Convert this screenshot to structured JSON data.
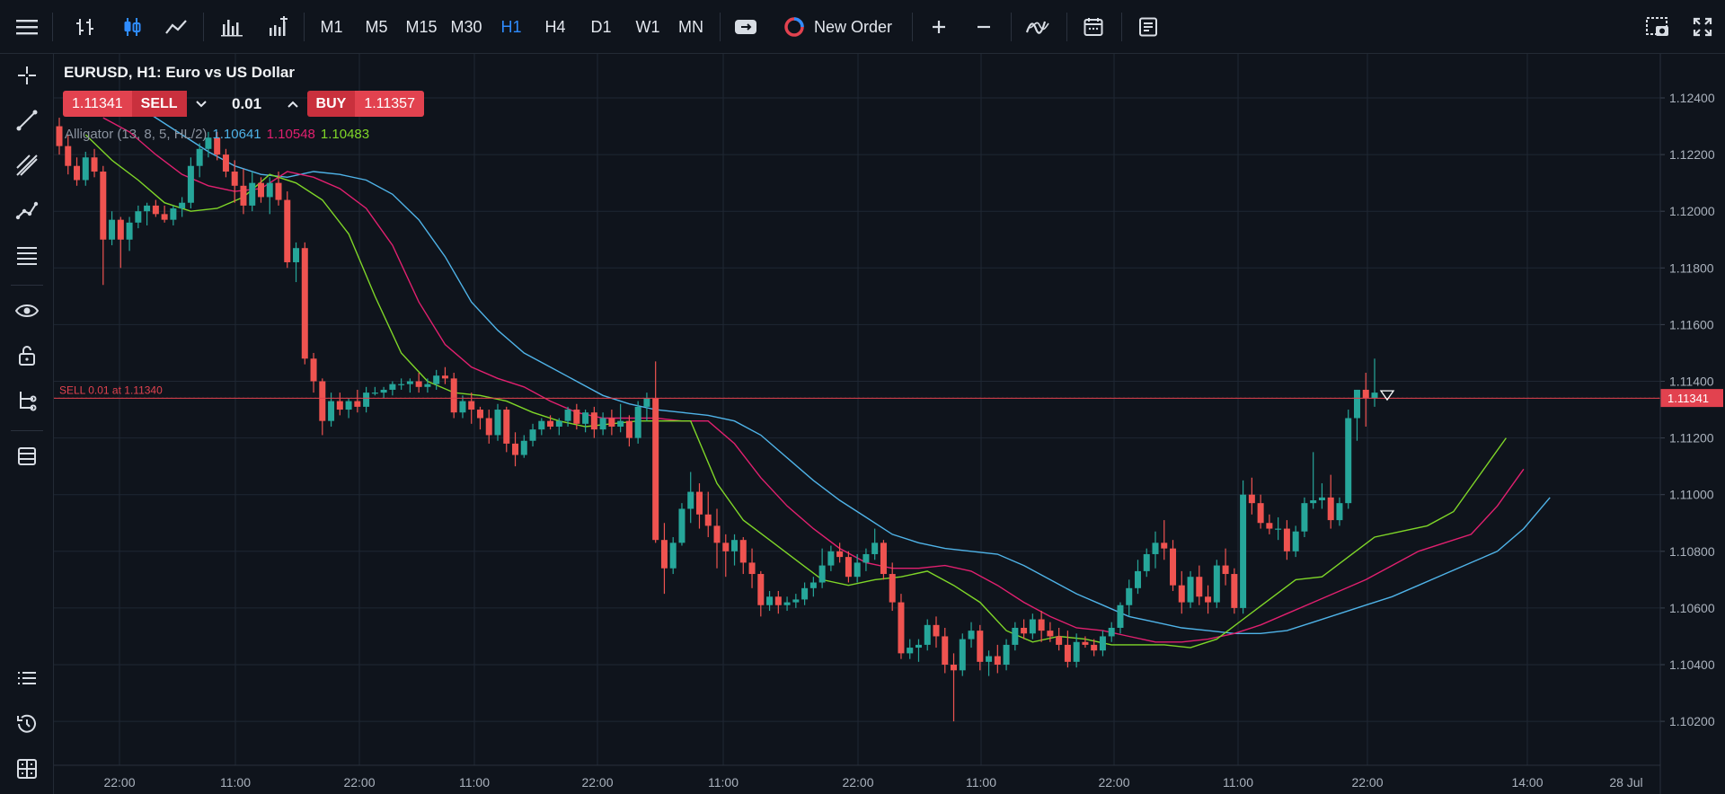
{
  "toolbar": {
    "timeframes": [
      "M1",
      "M5",
      "M15",
      "M30",
      "H1",
      "H4",
      "D1",
      "W1",
      "MN"
    ],
    "active_timeframe": "H1",
    "new_order_label": "New Order"
  },
  "chart_header": {
    "title": "EURUSD, H1: Euro vs US Dollar",
    "sell_price": "1.11341",
    "sell_label": "SELL",
    "quantity": "0.01",
    "buy_label": "BUY",
    "buy_price": "1.11357"
  },
  "indicator": {
    "name": "Alligator (13, 8, 5, HL/2)",
    "jaw": "1.10641",
    "teeth": "1.10548",
    "lips": "1.10483",
    "colors": {
      "jaw": "#4fb3e8",
      "teeth": "#e0206f",
      "lips": "#7fd628"
    }
  },
  "order_line": {
    "label": "SELL 0.01 at 1.11340",
    "price": 1.1134
  },
  "current_price": {
    "label": "1.11341",
    "value": 1.11341
  },
  "colors": {
    "bull": "#26a69a",
    "bear": "#ef5350",
    "grid": "#1f2733",
    "background": "#0f141c"
  },
  "chart_data": {
    "type": "candlestick",
    "symbol": "EURUSD",
    "timeframe": "H1",
    "ylim": [
      1.101,
      1.125
    ],
    "y_ticks": [
      "1.12400",
      "1.12200",
      "1.12000",
      "1.11800",
      "1.11600",
      "1.11400",
      "1.11200",
      "1.11000",
      "1.10800",
      "1.10600",
      "1.10400",
      "1.10200"
    ],
    "x_ticks": [
      "22:00",
      "11:00",
      "22:00",
      "11:00",
      "22:00",
      "11:00",
      "22:00",
      "11:00",
      "22:00",
      "11:00",
      "22:00",
      "14:00",
      "28 Jul"
    ],
    "candles": [
      [
        1.123,
        1.1233,
        1.122,
        1.1223
      ],
      [
        1.1223,
        1.1227,
        1.1213,
        1.1216
      ],
      [
        1.1216,
        1.1219,
        1.1209,
        1.1211
      ],
      [
        1.1211,
        1.1221,
        1.1209,
        1.1219
      ],
      [
        1.1219,
        1.1222,
        1.1212,
        1.1214
      ],
      [
        1.1214,
        1.1216,
        1.1174,
        1.119
      ],
      [
        1.119,
        1.12,
        1.1188,
        1.1197
      ],
      [
        1.1197,
        1.1198,
        1.118,
        1.119
      ],
      [
        1.119,
        1.1198,
        1.1186,
        1.1196
      ],
      [
        1.1196,
        1.1202,
        1.1194,
        1.12
      ],
      [
        1.12,
        1.1203,
        1.1195,
        1.1202
      ],
      [
        1.1202,
        1.1204,
        1.1198,
        1.1199
      ],
      [
        1.1199,
        1.1202,
        1.1196,
        1.1197
      ],
      [
        1.1197,
        1.1202,
        1.1195,
        1.1201
      ],
      [
        1.1201,
        1.1205,
        1.1198,
        1.1203
      ],
      [
        1.1203,
        1.1219,
        1.1201,
        1.1216
      ],
      [
        1.1216,
        1.1224,
        1.1212,
        1.1222
      ],
      [
        1.1222,
        1.1228,
        1.1219,
        1.1226
      ],
      [
        1.1226,
        1.1228,
        1.1218,
        1.122
      ],
      [
        1.122,
        1.1222,
        1.1212,
        1.1214
      ],
      [
        1.1214,
        1.1218,
        1.1203,
        1.1209
      ],
      [
        1.1209,
        1.1215,
        1.1199,
        1.1202
      ],
      [
        1.1202,
        1.1214,
        1.12,
        1.121
      ],
      [
        1.121,
        1.1212,
        1.1203,
        1.1205
      ],
      [
        1.1205,
        1.1212,
        1.1199,
        1.121
      ],
      [
        1.121,
        1.1214,
        1.1202,
        1.1204
      ],
      [
        1.1204,
        1.1207,
        1.118,
        1.1182
      ],
      [
        1.1182,
        1.1189,
        1.1175,
        1.1187
      ],
      [
        1.1187,
        1.1189,
        1.1146,
        1.1148
      ],
      [
        1.1148,
        1.115,
        1.1136,
        1.114
      ],
      [
        1.114,
        1.1141,
        1.1121,
        1.1126
      ],
      [
        1.1126,
        1.1136,
        1.1124,
        1.1133
      ],
      [
        1.1133,
        1.1136,
        1.1128,
        1.113
      ],
      [
        1.113,
        1.1134,
        1.1127,
        1.1133
      ],
      [
        1.1133,
        1.1137,
        1.1129,
        1.1131
      ],
      [
        1.1131,
        1.1138,
        1.1129,
        1.1136
      ],
      [
        1.1136,
        1.1138,
        1.1135,
        1.1136
      ],
      [
        1.1136,
        1.1138,
        1.1134,
        1.1137
      ],
      [
        1.1137,
        1.114,
        1.1135,
        1.1139
      ],
      [
        1.1139,
        1.1141,
        1.1137,
        1.1139
      ],
      [
        1.1139,
        1.1141,
        1.1136,
        1.114
      ],
      [
        1.114,
        1.1143,
        1.1136,
        1.1138
      ],
      [
        1.1138,
        1.1141,
        1.1136,
        1.1139
      ],
      [
        1.1139,
        1.1144,
        1.1137,
        1.1142
      ],
      [
        1.1142,
        1.1145,
        1.1139,
        1.1141
      ],
      [
        1.1141,
        1.1143,
        1.1127,
        1.1129
      ],
      [
        1.1129,
        1.1135,
        1.1127,
        1.1133
      ],
      [
        1.1133,
        1.1136,
        1.1125,
        1.113
      ],
      [
        1.113,
        1.1131,
        1.1123,
        1.1127
      ],
      [
        1.1127,
        1.113,
        1.1118,
        1.1121
      ],
      [
        1.1121,
        1.1132,
        1.1119,
        1.113
      ],
      [
        1.113,
        1.1131,
        1.1115,
        1.1118
      ],
      [
        1.1118,
        1.1122,
        1.111,
        1.1114
      ],
      [
        1.1114,
        1.1121,
        1.1113,
        1.1119
      ],
      [
        1.1119,
        1.1125,
        1.1117,
        1.1123
      ],
      [
        1.1123,
        1.1127,
        1.1121,
        1.1126
      ],
      [
        1.1126,
        1.1128,
        1.1123,
        1.1124
      ],
      [
        1.1124,
        1.1127,
        1.1121,
        1.1126
      ],
      [
        1.1126,
        1.1131,
        1.1124,
        1.113
      ],
      [
        1.113,
        1.1132,
        1.1123,
        1.1125
      ],
      [
        1.1125,
        1.113,
        1.1122,
        1.1129
      ],
      [
        1.1129,
        1.1131,
        1.112,
        1.1123
      ],
      [
        1.1123,
        1.1129,
        1.1121,
        1.1127
      ],
      [
        1.1127,
        1.113,
        1.1121,
        1.1124
      ],
      [
        1.1124,
        1.1132,
        1.1122,
        1.1126
      ],
      [
        1.1126,
        1.1128,
        1.1117,
        1.112
      ],
      [
        1.112,
        1.1133,
        1.1118,
        1.1131
      ],
      [
        1.1131,
        1.1136,
        1.1126,
        1.1134
      ],
      [
        1.1134,
        1.1147,
        1.1083,
        1.1084
      ],
      [
        1.1084,
        1.109,
        1.1065,
        1.1074
      ],
      [
        1.1074,
        1.1085,
        1.1072,
        1.1083
      ],
      [
        1.1083,
        1.1097,
        1.1082,
        1.1095
      ],
      [
        1.1095,
        1.1108,
        1.109,
        1.1101
      ],
      [
        1.1101,
        1.1104,
        1.1088,
        1.1093
      ],
      [
        1.1093,
        1.1101,
        1.1085,
        1.1089
      ],
      [
        1.1089,
        1.1095,
        1.1074,
        1.1083
      ],
      [
        1.1083,
        1.1086,
        1.1071,
        1.108
      ],
      [
        1.108,
        1.1086,
        1.1075,
        1.1084
      ],
      [
        1.1084,
        1.1085,
        1.1072,
        1.1076
      ],
      [
        1.1076,
        1.1081,
        1.1067,
        1.1072
      ],
      [
        1.1072,
        1.1073,
        1.1057,
        1.1061
      ],
      [
        1.1061,
        1.1066,
        1.1059,
        1.1064
      ],
      [
        1.1064,
        1.1066,
        1.1058,
        1.1061
      ],
      [
        1.1061,
        1.1064,
        1.1059,
        1.1062
      ],
      [
        1.1062,
        1.1065,
        1.106,
        1.1063
      ],
      [
        1.1063,
        1.1069,
        1.1061,
        1.1067
      ],
      [
        1.1067,
        1.1071,
        1.1064,
        1.1069
      ],
      [
        1.1069,
        1.1081,
        1.1067,
        1.1075
      ],
      [
        1.1075,
        1.1082,
        1.1073,
        1.108
      ],
      [
        1.108,
        1.1083,
        1.1076,
        1.1078
      ],
      [
        1.1078,
        1.108,
        1.1069,
        1.1071
      ],
      [
        1.1071,
        1.1079,
        1.1069,
        1.1076
      ],
      [
        1.1076,
        1.1081,
        1.1073,
        1.1079
      ],
      [
        1.1079,
        1.1088,
        1.1077,
        1.1083
      ],
      [
        1.1083,
        1.1084,
        1.107,
        1.1072
      ],
      [
        1.1072,
        1.1076,
        1.1059,
        1.1062
      ],
      [
        1.1062,
        1.1065,
        1.1042,
        1.1044
      ],
      [
        1.1044,
        1.1049,
        1.1042,
        1.1046
      ],
      [
        1.1046,
        1.1049,
        1.1041,
        1.1047
      ],
      [
        1.1047,
        1.1056,
        1.1045,
        1.1054
      ],
      [
        1.1054,
        1.1057,
        1.1046,
        1.105
      ],
      [
        1.105,
        1.1053,
        1.1037,
        1.104
      ],
      [
        1.104,
        1.1044,
        1.102,
        1.1038
      ],
      [
        1.1038,
        1.1051,
        1.1036,
        1.1049
      ],
      [
        1.1049,
        1.1055,
        1.1046,
        1.1052
      ],
      [
        1.1052,
        1.1054,
        1.1038,
        1.1041
      ],
      [
        1.1041,
        1.1045,
        1.1036,
        1.1043
      ],
      [
        1.1043,
        1.1047,
        1.1037,
        1.104
      ],
      [
        1.104,
        1.1049,
        1.1038,
        1.1047
      ],
      [
        1.1047,
        1.1055,
        1.1045,
        1.1053
      ],
      [
        1.1053,
        1.1056,
        1.1049,
        1.1051
      ],
      [
        1.1051,
        1.1058,
        1.1049,
        1.1056
      ],
      [
        1.1056,
        1.1059,
        1.1048,
        1.1052
      ],
      [
        1.1052,
        1.1055,
        1.1048,
        1.105
      ],
      [
        1.105,
        1.1053,
        1.1045,
        1.1047
      ],
      [
        1.1047,
        1.1052,
        1.1039,
        1.1041
      ],
      [
        1.1041,
        1.1051,
        1.1039,
        1.1048
      ],
      [
        1.1048,
        1.105,
        1.1046,
        1.1047
      ],
      [
        1.1047,
        1.1049,
        1.1043,
        1.1045
      ],
      [
        1.1045,
        1.1052,
        1.1043,
        1.105
      ],
      [
        1.105,
        1.1055,
        1.1048,
        1.1053
      ],
      [
        1.1053,
        1.1062,
        1.1051,
        1.1061
      ],
      [
        1.1061,
        1.107,
        1.1057,
        1.1067
      ],
      [
        1.1067,
        1.1077,
        1.1065,
        1.1073
      ],
      [
        1.1073,
        1.1081,
        1.1071,
        1.1079
      ],
      [
        1.1079,
        1.1087,
        1.1074,
        1.1083
      ],
      [
        1.1083,
        1.1091,
        1.1077,
        1.1081
      ],
      [
        1.1081,
        1.1084,
        1.1066,
        1.1068
      ],
      [
        1.1068,
        1.1073,
        1.1058,
        1.1062
      ],
      [
        1.1062,
        1.1073,
        1.106,
        1.1071
      ],
      [
        1.1071,
        1.1075,
        1.1061,
        1.1064
      ],
      [
        1.1064,
        1.1068,
        1.1058,
        1.1062
      ],
      [
        1.1062,
        1.1077,
        1.106,
        1.1075
      ],
      [
        1.1075,
        1.1081,
        1.1068,
        1.1072
      ],
      [
        1.1072,
        1.1074,
        1.1058,
        1.106
      ],
      [
        1.106,
        1.1105,
        1.1058,
        1.11
      ],
      [
        1.11,
        1.1106,
        1.1093,
        1.1097
      ],
      [
        1.1097,
        1.11,
        1.1088,
        1.109
      ],
      [
        1.109,
        1.1093,
        1.1086,
        1.1088
      ],
      [
        1.1088,
        1.1092,
        1.1084,
        1.1088
      ],
      [
        1.1088,
        1.1091,
        1.1077,
        1.108
      ],
      [
        1.108,
        1.1089,
        1.1078,
        1.1087
      ],
      [
        1.1087,
        1.1099,
        1.1085,
        1.1097
      ],
      [
        1.1097,
        1.1115,
        1.1095,
        1.1098
      ],
      [
        1.1098,
        1.1104,
        1.1095,
        1.1099
      ],
      [
        1.1099,
        1.1107,
        1.1088,
        1.1091
      ],
      [
        1.1091,
        1.1099,
        1.1089,
        1.1097
      ],
      [
        1.1097,
        1.113,
        1.1095,
        1.1127
      ],
      [
        1.1127,
        1.1137,
        1.1119,
        1.1137
      ],
      [
        1.1137,
        1.1143,
        1.1124,
        1.1134
      ],
      [
        1.1134,
        1.1148,
        1.1131,
        1.1136
      ]
    ],
    "alligator": {
      "lips": [
        1.1227,
        1.1218,
        1.1211,
        1.1203,
        1.12,
        1.1201,
        1.1205,
        1.1213,
        1.121,
        1.1204,
        1.1192,
        1.117,
        1.115,
        1.114,
        1.1136,
        1.1135,
        1.1133,
        1.1129,
        1.1126,
        1.1124,
        1.1125,
        1.1126,
        1.1126,
        1.1126,
        1.1104,
        1.1091,
        1.1084,
        1.1077,
        1.107,
        1.1068,
        1.107,
        1.1071,
        1.1073,
        1.1068,
        1.1062,
        1.1052,
        1.1048,
        1.105,
        1.1049,
        1.1047,
        1.1047,
        1.1047,
        1.1046,
        1.1049,
        1.1056,
        1.1063,
        1.107,
        1.1071,
        1.1078,
        1.1085,
        1.1087,
        1.1089,
        1.1094,
        1.1107,
        1.112
      ],
      "teeth": [
        1.1233,
        1.1228,
        1.122,
        1.1213,
        1.1209,
        1.1207,
        1.1208,
        1.1214,
        1.1212,
        1.1208,
        1.1201,
        1.1188,
        1.1168,
        1.1153,
        1.1145,
        1.1141,
        1.1138,
        1.1133,
        1.1129,
        1.1127,
        1.1127,
        1.1127,
        1.1126,
        1.1126,
        1.1118,
        1.1106,
        1.1096,
        1.1088,
        1.1081,
        1.1076,
        1.1074,
        1.1074,
        1.1075,
        1.1073,
        1.1068,
        1.1062,
        1.1057,
        1.1053,
        1.1052,
        1.105,
        1.1048,
        1.1048,
        1.1049,
        1.1051,
        1.1054,
        1.1058,
        1.1062,
        1.1066,
        1.107,
        1.1075,
        1.108,
        1.1083,
        1.1086,
        1.1096,
        1.1109
      ],
      "jaw": [
        1.1239,
        1.1233,
        1.1227,
        1.1221,
        1.1216,
        1.1213,
        1.1212,
        1.1214,
        1.1213,
        1.1211,
        1.1206,
        1.1197,
        1.1184,
        1.1168,
        1.1158,
        1.115,
        1.1145,
        1.114,
        1.1135,
        1.1132,
        1.113,
        1.1129,
        1.1128,
        1.1126,
        1.1121,
        1.1113,
        1.1105,
        1.1098,
        1.1092,
        1.1086,
        1.1083,
        1.1081,
        1.108,
        1.1079,
        1.1075,
        1.107,
        1.1065,
        1.1061,
        1.1057,
        1.1055,
        1.1053,
        1.1052,
        1.1051,
        1.1051,
        1.1052,
        1.1055,
        1.1058,
        1.1061,
        1.1064,
        1.1068,
        1.1072,
        1.1076,
        1.108,
        1.1088,
        1.1099
      ]
    }
  }
}
